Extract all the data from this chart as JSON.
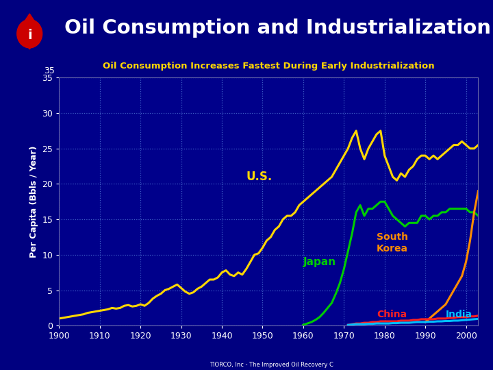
{
  "title": "Oil Consumption and Industrialization",
  "subtitle": "Oil Consumption Increases Fastest During Early Industrialization",
  "ylabel": "Per Capita (Bbls / Year)",
  "bg_color": "#000080",
  "plot_bg_color": "#00008B",
  "title_color": "#FFFFFF",
  "subtitle_color": "#FFD700",
  "ylabel_color": "#FFFFFF",
  "grid_color": "#4466CC",
  "years": [
    1900,
    1901,
    1902,
    1903,
    1904,
    1905,
    1906,
    1907,
    1908,
    1909,
    1910,
    1911,
    1912,
    1913,
    1914,
    1915,
    1916,
    1917,
    1918,
    1919,
    1920,
    1921,
    1922,
    1923,
    1924,
    1925,
    1926,
    1927,
    1928,
    1929,
    1930,
    1931,
    1932,
    1933,
    1934,
    1935,
    1936,
    1937,
    1938,
    1939,
    1940,
    1941,
    1942,
    1943,
    1944,
    1945,
    1946,
    1947,
    1948,
    1949,
    1950,
    1951,
    1952,
    1953,
    1954,
    1955,
    1956,
    1957,
    1958,
    1959,
    1960,
    1961,
    1962,
    1963,
    1964,
    1965,
    1966,
    1967,
    1968,
    1969,
    1970,
    1971,
    1972,
    1973,
    1974,
    1975,
    1976,
    1977,
    1978,
    1979,
    1980,
    1981,
    1982,
    1983,
    1984,
    1985,
    1986,
    1987,
    1988,
    1989,
    1990,
    1991,
    1992,
    1993,
    1994,
    1995,
    1996,
    1997,
    1998,
    1999,
    2000,
    2001,
    2002,
    2003
  ],
  "us": [
    1.0,
    1.1,
    1.2,
    1.3,
    1.4,
    1.5,
    1.6,
    1.8,
    1.9,
    2.0,
    2.1,
    2.2,
    2.3,
    2.5,
    2.4,
    2.5,
    2.8,
    2.9,
    2.7,
    2.8,
    3.0,
    2.8,
    3.2,
    3.8,
    4.2,
    4.5,
    5.0,
    5.2,
    5.5,
    5.8,
    5.3,
    4.8,
    4.5,
    4.7,
    5.2,
    5.5,
    6.0,
    6.5,
    6.5,
    6.8,
    7.5,
    7.8,
    7.2,
    7.0,
    7.5,
    7.2,
    8.0,
    9.0,
    10.0,
    10.2,
    11.0,
    12.0,
    12.5,
    13.5,
    14.0,
    15.0,
    15.5,
    15.5,
    16.0,
    17.0,
    17.5,
    18.0,
    18.5,
    19.0,
    19.5,
    20.0,
    20.5,
    21.0,
    22.0,
    23.0,
    24.0,
    25.0,
    26.5,
    27.5,
    25.0,
    23.5,
    25.0,
    26.0,
    27.0,
    27.5,
    24.0,
    22.5,
    21.0,
    20.5,
    21.5,
    21.0,
    22.0,
    22.5,
    23.5,
    24.0,
    24.0,
    23.5,
    24.0,
    23.5,
    24.0,
    24.5,
    25.0,
    25.5,
    25.5,
    26.0,
    25.5,
    25.0,
    25.0,
    25.5
  ],
  "japan": [
    null,
    null,
    null,
    null,
    null,
    null,
    null,
    null,
    null,
    null,
    null,
    null,
    null,
    null,
    null,
    null,
    null,
    null,
    null,
    null,
    null,
    null,
    null,
    null,
    null,
    null,
    null,
    null,
    null,
    null,
    null,
    null,
    null,
    null,
    null,
    null,
    null,
    null,
    null,
    null,
    null,
    null,
    null,
    null,
    null,
    null,
    null,
    null,
    null,
    null,
    null,
    null,
    null,
    null,
    null,
    null,
    null,
    null,
    null,
    null,
    0.1,
    0.3,
    0.5,
    0.8,
    1.2,
    1.8,
    2.5,
    3.2,
    4.5,
    6.0,
    8.0,
    10.5,
    13.0,
    16.0,
    17.0,
    15.5,
    16.5,
    16.5,
    17.0,
    17.5,
    17.5,
    16.5,
    15.5,
    15.0,
    14.5,
    14.0,
    14.5,
    14.5,
    14.5,
    15.5,
    15.5,
    15.0,
    15.5,
    15.5,
    16.0,
    16.0,
    16.5,
    16.5,
    16.5,
    16.5,
    16.5,
    16.0,
    16.0,
    15.5
  ],
  "south_korea": [
    null,
    null,
    null,
    null,
    null,
    null,
    null,
    null,
    null,
    null,
    null,
    null,
    null,
    null,
    null,
    null,
    null,
    null,
    null,
    null,
    null,
    null,
    null,
    null,
    null,
    null,
    null,
    null,
    null,
    null,
    null,
    null,
    null,
    null,
    null,
    null,
    null,
    null,
    null,
    null,
    null,
    null,
    null,
    null,
    null,
    null,
    null,
    null,
    null,
    null,
    null,
    null,
    null,
    null,
    null,
    null,
    null,
    null,
    null,
    null,
    null,
    null,
    null,
    null,
    null,
    null,
    null,
    null,
    null,
    null,
    null,
    null,
    null,
    null,
    null,
    null,
    null,
    null,
    null,
    null,
    null,
    null,
    null,
    null,
    null,
    null,
    null,
    null,
    null,
    null,
    0.5,
    1.0,
    1.5,
    2.0,
    2.5,
    3.0,
    4.0,
    5.0,
    6.0,
    7.0,
    9.0,
    12.0,
    16.0,
    19.0
  ],
  "china": [
    null,
    null,
    null,
    null,
    null,
    null,
    null,
    null,
    null,
    null,
    null,
    null,
    null,
    null,
    null,
    null,
    null,
    null,
    null,
    null,
    null,
    null,
    null,
    null,
    null,
    null,
    null,
    null,
    null,
    null,
    null,
    null,
    null,
    null,
    null,
    null,
    null,
    null,
    null,
    null,
    null,
    null,
    null,
    null,
    null,
    null,
    null,
    null,
    null,
    null,
    null,
    null,
    null,
    null,
    null,
    null,
    null,
    null,
    null,
    null,
    null,
    null,
    null,
    null,
    null,
    null,
    null,
    null,
    null,
    null,
    null,
    0.1,
    0.2,
    0.3,
    0.3,
    0.4,
    0.4,
    0.5,
    0.5,
    0.6,
    0.6,
    0.6,
    0.6,
    0.6,
    0.7,
    0.7,
    0.7,
    0.8,
    0.8,
    0.9,
    0.9,
    0.9,
    0.9,
    1.0,
    1.0,
    1.0,
    1.1,
    1.1,
    1.2,
    1.2,
    1.2,
    1.3,
    1.3,
    1.4
  ],
  "india": [
    null,
    null,
    null,
    null,
    null,
    null,
    null,
    null,
    null,
    null,
    null,
    null,
    null,
    null,
    null,
    null,
    null,
    null,
    null,
    null,
    null,
    null,
    null,
    null,
    null,
    null,
    null,
    null,
    null,
    null,
    null,
    null,
    null,
    null,
    null,
    null,
    null,
    null,
    null,
    null,
    null,
    null,
    null,
    null,
    null,
    null,
    null,
    null,
    null,
    null,
    null,
    null,
    null,
    null,
    null,
    null,
    null,
    null,
    null,
    null,
    null,
    null,
    null,
    null,
    null,
    null,
    null,
    null,
    null,
    null,
    null,
    0.1,
    0.15,
    0.2,
    0.2,
    0.2,
    0.25,
    0.25,
    0.3,
    0.3,
    0.3,
    0.3,
    0.35,
    0.35,
    0.4,
    0.4,
    0.4,
    0.45,
    0.5,
    0.5,
    0.5,
    0.55,
    0.55,
    0.6,
    0.6,
    0.65,
    0.65,
    0.7,
    0.7,
    0.75,
    0.8,
    0.85,
    0.9,
    0.95
  ],
  "us_color": "#FFD700",
  "japan_color": "#00CC00",
  "sk_color": "#FF8C00",
  "china_color": "#FF2020",
  "india_color": "#00BFFF",
  "us_label": "U.S.",
  "japan_label": "Japan",
  "sk_label": "South\nKorea",
  "china_label": "China",
  "india_label": "India",
  "xlim": [
    1900,
    2003
  ],
  "ylim": [
    0,
    35
  ],
  "yticks": [
    0,
    5,
    10,
    15,
    20,
    25,
    30,
    35
  ],
  "xticks": [
    1900,
    1910,
    1920,
    1930,
    1940,
    1950,
    1960,
    1970,
    1980,
    1990,
    2000
  ]
}
